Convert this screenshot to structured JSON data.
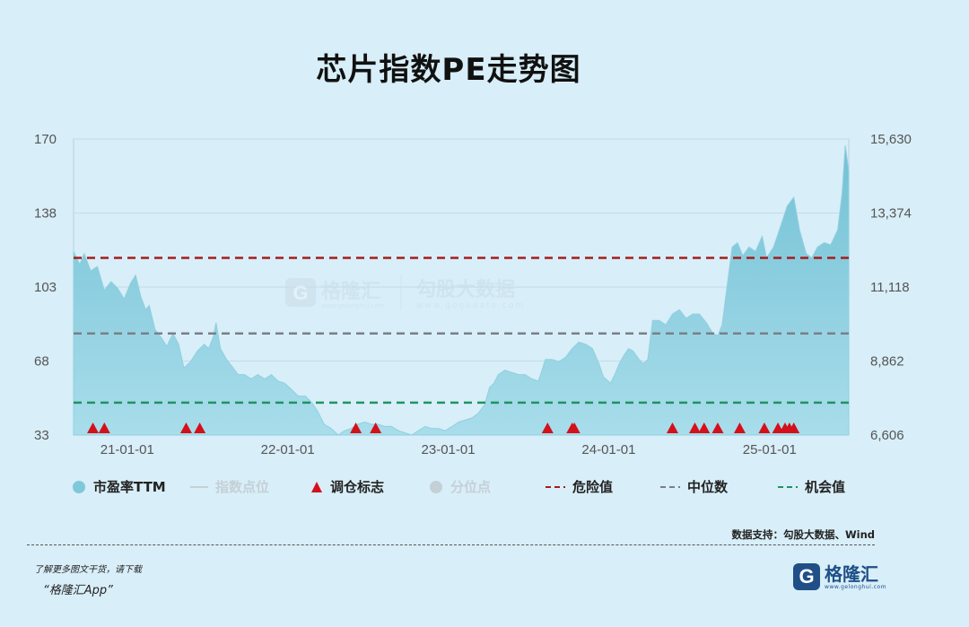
{
  "title": "芯片指数PE走势图",
  "colors": {
    "area": "#7ec9d9",
    "danger": "#a61c1c",
    "median": "#7a7f88",
    "opportunity": "#1e9460",
    "triangle": "#d4101a"
  },
  "watermark": {
    "name": "格隆汇",
    "sub": "www.gelonghui.com",
    "name2": "勾股大数据",
    "sub2": "www.gogudata.com"
  },
  "legend": [
    {
      "label": "市盈率TTM",
      "icon": "filled-circle"
    },
    {
      "label": "指数点位",
      "icon": "line"
    },
    {
      "label": "调仓标志",
      "icon": "triangle"
    },
    {
      "label": "分位点",
      "icon": "circle"
    },
    {
      "label": "危险值",
      "icon": "dashed-red"
    },
    {
      "label": "中位数",
      "icon": "dashed-gray"
    },
    {
      "label": "机会值",
      "icon": "dashed-green"
    }
  ],
  "source": "数据支持：勾股大数据、Wind",
  "footer_line1": "了解更多图文干货，请下载",
  "footer_line2": "“格隆汇App”",
  "logo": {
    "glyph": "G",
    "name": "格隆汇",
    "sub": "www.gelonghui.com"
  },
  "chart_data": {
    "type": "area",
    "title": "芯片指数PE走势图",
    "left_ticks": [
      "170",
      "138",
      "103",
      "68",
      "33"
    ],
    "right_ticks": [
      "15,630",
      "13,374",
      "11,118",
      "8,862",
      "6,606"
    ],
    "x_ticks": [
      "21-01-01",
      "22-01-01",
      "23-01-01",
      "24-01-01",
      "25-01-01"
    ],
    "ylim_left": [
      33,
      170
    ],
    "xlim": [
      "2020-09-01",
      "2025-06-30"
    ],
    "reference_lines": {
      "danger": 115,
      "median": 80,
      "opportunity": 48
    },
    "pe_series": [
      [
        "2020-09-01",
        118
      ],
      [
        "2020-09-15",
        112
      ],
      [
        "2020-09-25",
        117
      ],
      [
        "2020-10-10",
        109
      ],
      [
        "2020-10-25",
        111
      ],
      [
        "2020-11-10",
        100
      ],
      [
        "2020-11-25",
        104
      ],
      [
        "2020-12-10",
        101
      ],
      [
        "2020-12-25",
        96
      ],
      [
        "2021-01-08",
        103
      ],
      [
        "2021-01-20",
        107
      ],
      [
        "2021-02-01",
        97
      ],
      [
        "2021-02-12",
        91
      ],
      [
        "2021-02-20",
        93
      ],
      [
        "2021-03-05",
        82
      ],
      [
        "2021-03-20",
        78
      ],
      [
        "2021-04-01",
        74
      ],
      [
        "2021-04-15",
        80
      ],
      [
        "2021-04-28",
        75
      ],
      [
        "2021-05-10",
        64
      ],
      [
        "2021-05-25",
        67
      ],
      [
        "2021-06-10",
        72
      ],
      [
        "2021-06-25",
        75
      ],
      [
        "2021-07-05",
        73
      ],
      [
        "2021-07-15",
        78
      ],
      [
        "2021-07-22",
        85
      ],
      [
        "2021-08-01",
        73
      ],
      [
        "2021-08-15",
        68
      ],
      [
        "2021-08-30",
        64
      ],
      [
        "2021-09-10",
        61
      ],
      [
        "2021-09-25",
        61
      ],
      [
        "2021-10-10",
        59
      ],
      [
        "2021-10-25",
        61
      ],
      [
        "2021-11-10",
        59
      ],
      [
        "2021-11-25",
        61
      ],
      [
        "2021-12-10",
        58
      ],
      [
        "2021-12-25",
        57
      ],
      [
        "2022-01-10",
        54
      ],
      [
        "2022-01-25",
        51
      ],
      [
        "2022-02-10",
        51
      ],
      [
        "2022-02-25",
        48
      ],
      [
        "2022-03-10",
        44
      ],
      [
        "2022-03-25",
        38
      ],
      [
        "2022-04-10",
        36
      ],
      [
        "2022-04-26",
        33
      ],
      [
        "2022-05-10",
        35
      ],
      [
        "2022-05-25",
        36
      ],
      [
        "2022-06-10",
        38
      ],
      [
        "2022-06-25",
        39
      ],
      [
        "2022-07-10",
        38
      ],
      [
        "2022-07-25",
        38
      ],
      [
        "2022-08-10",
        37
      ],
      [
        "2022-08-25",
        37
      ],
      [
        "2022-09-10",
        35
      ],
      [
        "2022-09-25",
        34
      ],
      [
        "2022-10-10",
        33
      ],
      [
        "2022-10-25",
        35
      ],
      [
        "2022-11-10",
        37
      ],
      [
        "2022-11-25",
        36
      ],
      [
        "2022-12-10",
        36
      ],
      [
        "2022-12-25",
        35
      ],
      [
        "2023-01-10",
        37
      ],
      [
        "2023-01-25",
        39
      ],
      [
        "2023-02-10",
        40
      ],
      [
        "2023-02-25",
        41
      ],
      [
        "2023-03-10",
        43
      ],
      [
        "2023-03-25",
        47
      ],
      [
        "2023-04-05",
        55
      ],
      [
        "2023-04-15",
        57
      ],
      [
        "2023-04-25",
        61
      ],
      [
        "2023-05-10",
        63
      ],
      [
        "2023-05-25",
        62
      ],
      [
        "2023-06-10",
        61
      ],
      [
        "2023-06-25",
        61
      ],
      [
        "2023-07-10",
        59
      ],
      [
        "2023-07-25",
        58
      ],
      [
        "2023-08-01",
        62
      ],
      [
        "2023-08-10",
        68
      ],
      [
        "2023-08-25",
        68
      ],
      [
        "2023-09-10",
        67
      ],
      [
        "2023-09-25",
        69
      ],
      [
        "2023-10-10",
        73
      ],
      [
        "2023-10-25",
        76
      ],
      [
        "2023-11-10",
        75
      ],
      [
        "2023-11-25",
        73
      ],
      [
        "2023-12-10",
        66
      ],
      [
        "2023-12-20",
        60
      ],
      [
        "2024-01-05",
        57
      ],
      [
        "2024-01-15",
        61
      ],
      [
        "2024-01-25",
        66
      ],
      [
        "2024-02-05",
        70
      ],
      [
        "2024-02-15",
        73
      ],
      [
        "2024-02-25",
        72
      ],
      [
        "2024-03-10",
        68
      ],
      [
        "2024-03-20",
        66
      ],
      [
        "2024-03-30",
        68
      ],
      [
        "2024-04-10",
        86
      ],
      [
        "2024-04-25",
        86
      ],
      [
        "2024-05-10",
        84
      ],
      [
        "2024-05-25",
        89
      ],
      [
        "2024-06-10",
        91
      ],
      [
        "2024-06-25",
        87
      ],
      [
        "2024-07-10",
        89
      ],
      [
        "2024-07-25",
        89
      ],
      [
        "2024-08-10",
        85
      ],
      [
        "2024-08-25",
        80
      ],
      [
        "2024-09-05",
        79
      ],
      [
        "2024-09-15",
        84
      ],
      [
        "2024-09-25",
        100
      ],
      [
        "2024-10-08",
        120
      ],
      [
        "2024-10-20",
        122
      ],
      [
        "2024-11-01",
        116
      ],
      [
        "2024-11-15",
        120
      ],
      [
        "2024-11-30",
        118
      ],
      [
        "2024-12-15",
        125
      ],
      [
        "2024-12-25",
        115
      ],
      [
        "2025-01-10",
        120
      ],
      [
        "2025-01-25",
        129
      ],
      [
        "2025-02-10",
        139
      ],
      [
        "2025-02-25",
        143
      ],
      [
        "2025-03-10",
        128
      ],
      [
        "2025-03-25",
        117
      ],
      [
        "2025-04-07",
        115
      ],
      [
        "2025-04-20",
        120
      ],
      [
        "2025-05-05",
        122
      ],
      [
        "2025-05-20",
        121
      ],
      [
        "2025-06-05",
        128
      ],
      [
        "2025-06-15",
        145
      ],
      [
        "2025-06-22",
        167
      ],
      [
        "2025-06-30",
        155
      ]
    ],
    "rebalance_marks": [
      "2020-10-15",
      "2020-11-10",
      "2021-05-15",
      "2021-06-15",
      "2022-06-05",
      "2022-07-20",
      "2023-08-15",
      "2023-10-10",
      "2023-10-15",
      "2024-05-25",
      "2024-07-15",
      "2024-08-05",
      "2024-09-05",
      "2024-10-25",
      "2024-12-20",
      "2025-01-20",
      "2025-02-05",
      "2025-02-15",
      "2025-02-25"
    ]
  }
}
